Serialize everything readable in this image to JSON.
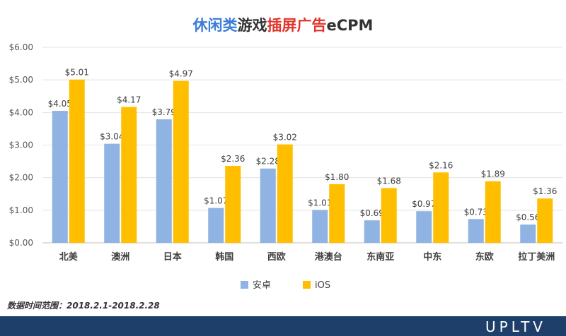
{
  "title": {
    "part1": "休闲类",
    "part2": "游戏",
    "part3": "插屏广告",
    "part4": "eCPM"
  },
  "colors": {
    "title_blue": "#3b7dd8",
    "title_red": "#e0352b",
    "title_dark": "#333333",
    "android": "#8fb4e3",
    "ios": "#ffbf00",
    "footer": "#1f3f6b"
  },
  "footnote": "数据时间范围：2018.2.1-2018.2.28",
  "logo_text": "UPLTV",
  "chart_data": {
    "type": "bar",
    "title": "休闲类游戏插屏广告eCPM",
    "categories": [
      "北美",
      "澳洲",
      "日本",
      "韩国",
      "西欧",
      "港澳台",
      "东南亚",
      "中东",
      "东欧",
      "拉丁美洲"
    ],
    "series": [
      {
        "name": "安卓",
        "values": [
          4.05,
          3.04,
          3.79,
          1.07,
          2.28,
          1.01,
          0.69,
          0.97,
          0.73,
          0.56
        ],
        "labels": [
          "$4.05",
          "$3.04",
          "$3.79",
          "$1.07",
          "$2.28",
          "$1.01",
          "$0.69",
          "$0.97",
          "$0.73",
          "$0.56"
        ]
      },
      {
        "name": "iOS",
        "values": [
          5.01,
          4.17,
          4.97,
          2.36,
          3.02,
          1.8,
          1.68,
          2.16,
          1.89,
          1.36
        ],
        "labels": [
          "$5.01",
          "$4.17",
          "$4.97",
          "$2.36",
          "$3.02",
          "$1.80",
          "$1.68",
          "$2.16",
          "$1.89",
          "$1.36"
        ]
      }
    ],
    "yticks": [
      "$0.00",
      "$1.00",
      "$2.00",
      "$3.00",
      "$4.00",
      "$5.00",
      "$6.00"
    ],
    "ylim": [
      0,
      6
    ],
    "grid": true,
    "legend_position": "bottom"
  }
}
